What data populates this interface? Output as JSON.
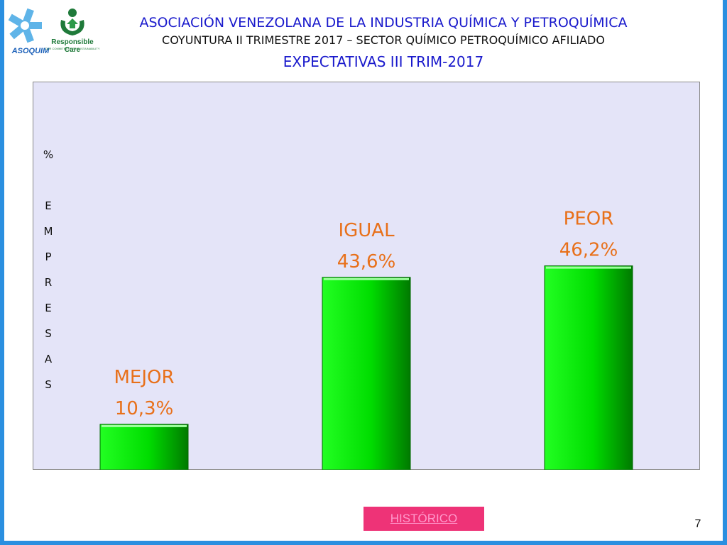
{
  "header": {
    "org_title": "ASOCIACIÓN VENEZOLANA DE LA INDUSTRIA QUÍMICA Y PETROQUÍMICA",
    "subtitle": "COYUNTURA II TRIMESTRE 2017 – SECTOR QUÍMICO PETROQUÍMICO AFILIADO",
    "chart_title": "EXPECTATIVAS III TRIM-2017"
  },
  "logos": {
    "asoquim": "ASOQUIM",
    "responsible_care": "Responsible Care",
    "responsible_care_tagline": "OUR COMMITMENT TO SUSTAINABILITY"
  },
  "chart_data": {
    "type": "bar",
    "title": "EXPECTATIVAS III TRIM-2017",
    "ylabel": "% EMPRESAS",
    "ylabel_chars": [
      "%",
      "",
      "E",
      "M",
      "P",
      "R",
      "E",
      "S",
      "A",
      "S"
    ],
    "categories": [
      "MEJOR",
      "IGUAL",
      "PEOR"
    ],
    "values": [
      10.3,
      43.6,
      46.2
    ],
    "value_labels": [
      "10,3%",
      "43,6%",
      "46,2%"
    ],
    "ylim": [
      0,
      100
    ],
    "grid": false,
    "legend": "none",
    "bar_color": "#00dd00",
    "label_color": "#e8701a",
    "plot_background": "#e4e4f8"
  },
  "footer": {
    "historico_label": "HISTÓRICO",
    "page_number": "7"
  }
}
